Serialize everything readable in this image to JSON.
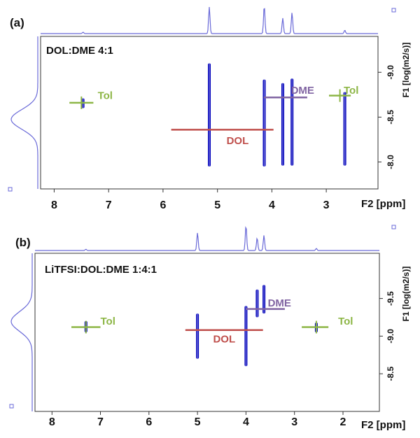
{
  "chart_data": [
    {
      "panel": "(a)",
      "type": "scatter",
      "title": "DOL:DME 4:1",
      "xlabel": "F2 [ppm]",
      "ylabel": "F1 [log(m2/s)]",
      "x_ticks": [
        "8",
        "7",
        "6",
        "5",
        "4",
        "3"
      ],
      "y_ticks": [
        "-9.0",
        "-8.5",
        "-8.0"
      ],
      "xlim": [
        8.25,
        2.05
      ],
      "ylim": [
        -9.4,
        -7.7
      ],
      "colors": {
        "peaks": "#0000bb",
        "projection": "#6a6ad8",
        "Tol": "#8db646",
        "DOL": "#c0504d",
        "DME": "#8064a2"
      },
      "peaks": [
        {
          "x": 7.47,
          "y_top": -8.71,
          "y_bottom": -8.6
        },
        {
          "x": 5.15,
          "y_top": -9.1,
          "y_bottom": -7.95
        },
        {
          "x": 4.14,
          "y_top": -8.92,
          "y_bottom": -7.95
        },
        {
          "x": 3.8,
          "y_top": -8.88,
          "y_bottom": -7.96
        },
        {
          "x": 3.63,
          "y_top": -8.93,
          "y_bottom": -7.96
        },
        {
          "x": 2.66,
          "y_top": -8.78,
          "y_bottom": -7.96
        }
      ],
      "annotations": [
        {
          "label": "Tol",
          "x": 7.5,
          "y": -8.66,
          "line_from": 7.72,
          "line_to": 7.28,
          "text_x": 7.2,
          "text_y": -8.74,
          "color": "Tol"
        },
        {
          "label": "DOL",
          "x": 4.63,
          "y": -8.36,
          "line_from": 5.85,
          "line_to": 3.97,
          "text_x": 4.63,
          "text_y": -8.24,
          "color": "DOL"
        },
        {
          "label": "DME",
          "x": 3.65,
          "y": -8.72,
          "line_from": 4.15,
          "line_to": 3.35,
          "text_x": 3.65,
          "text_y": -8.8,
          "color": "DME"
        },
        {
          "label": "Tol",
          "x": 2.75,
          "y": -8.74,
          "line_from": 2.95,
          "line_to": 2.55,
          "text_x": 2.68,
          "text_y": -8.8,
          "color": "Tol"
        }
      ],
      "spectrum_1d_peaks": [
        {
          "x": 5.15,
          "h": 0.95
        },
        {
          "x": 4.14,
          "h": 1.0
        },
        {
          "x": 3.8,
          "h": 0.55
        },
        {
          "x": 3.63,
          "h": 0.75
        },
        {
          "x": 2.66,
          "h": 0.12
        },
        {
          "x": 7.47,
          "h": 0.05
        }
      ]
    },
    {
      "panel": "(b)",
      "type": "scatter",
      "title": "LiTFSI:DOL:DME 1:4:1",
      "xlabel": "F2 [ppm]",
      "ylabel": "F1 [log(m2/s)]",
      "x_ticks": [
        "8",
        "7",
        "6",
        "5",
        "4",
        "3",
        "2"
      ],
      "y_ticks": [
        "-9.5",
        "-9.0",
        "-8.5"
      ],
      "xlim": [
        8.35,
        1.25
      ],
      "ylim": [
        -10.1,
        -8.0
      ],
      "colors": {
        "peaks": "#0000bb",
        "projection": "#6a6ad8",
        "Tol": "#8db646",
        "DOL": "#c0504d",
        "DME": "#8064a2"
      },
      "peaks": [
        {
          "x": 7.3,
          "y_top": -9.2,
          "y_bottom": -9.05
        },
        {
          "x": 5.0,
          "y_top": -9.3,
          "y_bottom": -8.7
        },
        {
          "x": 4.0,
          "y_top": -9.4,
          "y_bottom": -8.6
        },
        {
          "x": 3.77,
          "y_top": -9.62,
          "y_bottom": -9.25
        },
        {
          "x": 3.63,
          "y_top": -9.68,
          "y_bottom": -9.3
        },
        {
          "x": 2.55,
          "y_top": -9.18,
          "y_bottom": -9.05
        }
      ],
      "annotations": [
        {
          "label": "Tol",
          "x": 7.3,
          "y": -9.12,
          "line_from": 7.6,
          "line_to": 7.0,
          "text_x": 7.0,
          "text_y": -9.2,
          "color": "Tol"
        },
        {
          "label": "DOL",
          "x": 4.45,
          "y": -9.08,
          "line_from": 5.25,
          "line_to": 3.65,
          "text_x": 4.45,
          "text_y": -8.96,
          "color": "DOL"
        },
        {
          "label": "DME",
          "x": 3.55,
          "y": -9.36,
          "line_from": 4.0,
          "line_to": 3.2,
          "text_x": 3.55,
          "text_y": -9.44,
          "color": "DME"
        },
        {
          "label": "Tol",
          "x": 2.55,
          "y": -9.12,
          "line_from": 2.85,
          "line_to": 2.3,
          "text_x": 2.1,
          "text_y": -9.2,
          "color": "Tol"
        }
      ],
      "spectrum_1d_peaks": [
        {
          "x": 5.0,
          "h": 0.7
        },
        {
          "x": 4.0,
          "h": 1.0
        },
        {
          "x": 3.77,
          "h": 0.5
        },
        {
          "x": 3.63,
          "h": 0.6
        },
        {
          "x": 2.55,
          "h": 0.08
        },
        {
          "x": 7.3,
          "h": 0.05
        }
      ]
    }
  ]
}
